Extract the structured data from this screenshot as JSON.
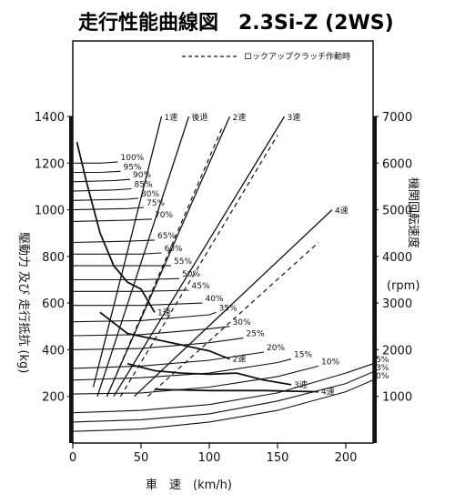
{
  "chart_data": {
    "type": "line",
    "title": "走行性能曲線図　2.3Si-Z (2WS)",
    "legend": {
      "text": "ロックアップクラッチ作動時",
      "placement": "top-right"
    },
    "xlabel": "車　速　(km/h)",
    "ylabel_left": "駆動力 及び 走行抵抗 (kg)",
    "ylabel_right": "機関回転速度",
    "ylabel_right_unit": "(rpm)",
    "xlim": [
      0,
      220
    ],
    "ylim_left": [
      0,
      1400
    ],
    "ylim_right": [
      0,
      7000
    ],
    "x_ticks": [
      "0",
      "50",
      "100",
      "150",
      "200"
    ],
    "y_ticks_left": [
      "200",
      "400",
      "600",
      "800",
      "1000",
      "1200",
      "1400"
    ],
    "y_ticks_right": [
      "1000",
      "2000",
      "3000",
      "4000",
      "5000",
      "6000",
      "7000"
    ],
    "drive_force": [
      {
        "name": "1速",
        "x": [
          3,
          10,
          20,
          30,
          40,
          50,
          60
        ],
        "y": [
          1290,
          1120,
          900,
          760,
          690,
          660,
          560
        ]
      },
      {
        "name": "2速",
        "x": [
          20,
          40,
          60,
          80,
          100,
          115
        ],
        "y": [
          560,
          470,
          445,
          420,
          395,
          360
        ]
      },
      {
        "name": "3速",
        "x": [
          40,
          60,
          80,
          100,
          120,
          140,
          160
        ],
        "y": [
          340,
          310,
          300,
          295,
          300,
          270,
          250
        ]
      },
      {
        "name": "4速",
        "x": [
          60,
          100,
          140,
          180
        ],
        "y": [
          230,
          225,
          225,
          220
        ]
      }
    ],
    "rpm_lines": [
      {
        "name": "1速",
        "x": [
          15,
          65
        ],
        "rpm": [
          1200,
          7000
        ]
      },
      {
        "name": "後退",
        "x": [
          18,
          85
        ],
        "rpm": [
          1000,
          7000
        ]
      },
      {
        "name": "2速",
        "x": [
          25,
          115
        ],
        "rpm": [
          1000,
          7000
        ]
      },
      {
        "name": "3速",
        "x": [
          30,
          155
        ],
        "rpm": [
          1000,
          7000
        ]
      },
      {
        "name": "4速",
        "x": [
          45,
          190
        ],
        "rpm": [
          1000,
          5000
        ]
      }
    ],
    "lockup_rpm_lines": [
      {
        "name": "2速",
        "x": [
          25,
          110
        ],
        "rpm": [
          1000,
          6800
        ]
      },
      {
        "name": "3速",
        "x": [
          35,
          150
        ],
        "rpm": [
          1000,
          6600
        ]
      },
      {
        "name": "4速",
        "x": [
          55,
          180
        ],
        "rpm": [
          1000,
          4300
        ]
      }
    ],
    "resistance": [
      {
        "name": "0%",
        "x": [
          0,
          50,
          100,
          150,
          200,
          220
        ],
        "y": [
          50,
          60,
          90,
          140,
          220,
          270
        ]
      },
      {
        "name": "3%",
        "x": [
          0,
          50,
          100,
          150,
          200,
          220
        ],
        "y": [
          90,
          100,
          125,
          180,
          255,
          305
        ]
      },
      {
        "name": "5%",
        "x": [
          0,
          50,
          100,
          150,
          200,
          220
        ],
        "y": [
          130,
          140,
          165,
          215,
          300,
          340
        ]
      },
      {
        "name": "10%",
        "x": [
          0,
          50,
          100,
          150,
          180
        ],
        "y": [
          210,
          215,
          240,
          285,
          330
        ]
      },
      {
        "name": "15%",
        "x": [
          0,
          50,
          100,
          150,
          160
        ],
        "y": [
          270,
          280,
          300,
          345,
          360
        ]
      },
      {
        "name": "20%",
        "x": [
          0,
          50,
          100,
          140
        ],
        "y": [
          320,
          330,
          355,
          390
        ]
      },
      {
        "name": "25%",
        "x": [
          0,
          50,
          100,
          125
        ],
        "y": [
          400,
          405,
          430,
          450
        ]
      },
      {
        "name": "30%",
        "x": [
          0,
          50,
          100,
          115
        ],
        "y": [
          460,
          465,
          490,
          500
        ]
      },
      {
        "name": "35%",
        "x": [
          0,
          50,
          100,
          105
        ],
        "y": [
          520,
          525,
          550,
          560
        ]
      },
      {
        "name": "40%",
        "x": [
          0,
          50,
          95
        ],
        "y": [
          590,
          590,
          600
        ]
      },
      {
        "name": "45%",
        "x": [
          0,
          50,
          85
        ],
        "y": [
          650,
          650,
          655
        ]
      },
      {
        "name": "50%",
        "x": [
          0,
          50,
          78
        ],
        "y": [
          700,
          700,
          705
        ]
      },
      {
        "name": "55%",
        "x": [
          0,
          50,
          72
        ],
        "y": [
          760,
          760,
          760
        ]
      },
      {
        "name": "60%",
        "x": [
          0,
          50,
          65
        ],
        "y": [
          810,
          810,
          815
        ]
      },
      {
        "name": "65%",
        "x": [
          0,
          40,
          60
        ],
        "y": [
          860,
          865,
          870
        ]
      },
      {
        "name": "70%",
        "x": [
          0,
          40,
          58
        ],
        "y": [
          950,
          955,
          960
        ]
      },
      {
        "name": "75%",
        "x": [
          0,
          40,
          52
        ],
        "y": [
          1000,
          1005,
          1010
        ]
      },
      {
        "name": "80%",
        "x": [
          0,
          40,
          48
        ],
        "y": [
          1040,
          1045,
          1050
        ]
      },
      {
        "name": "85%",
        "x": [
          0,
          30,
          43
        ],
        "y": [
          1080,
          1085,
          1090
        ]
      },
      {
        "name": "90%",
        "x": [
          0,
          30,
          42
        ],
        "y": [
          1120,
          1125,
          1130
        ]
      },
      {
        "name": "95%",
        "x": [
          0,
          20,
          35
        ],
        "y": [
          1160,
          1160,
          1165
        ]
      },
      {
        "name": "100%",
        "x": [
          0,
          20,
          33
        ],
        "y": [
          1200,
          1200,
          1205
        ]
      }
    ]
  }
}
